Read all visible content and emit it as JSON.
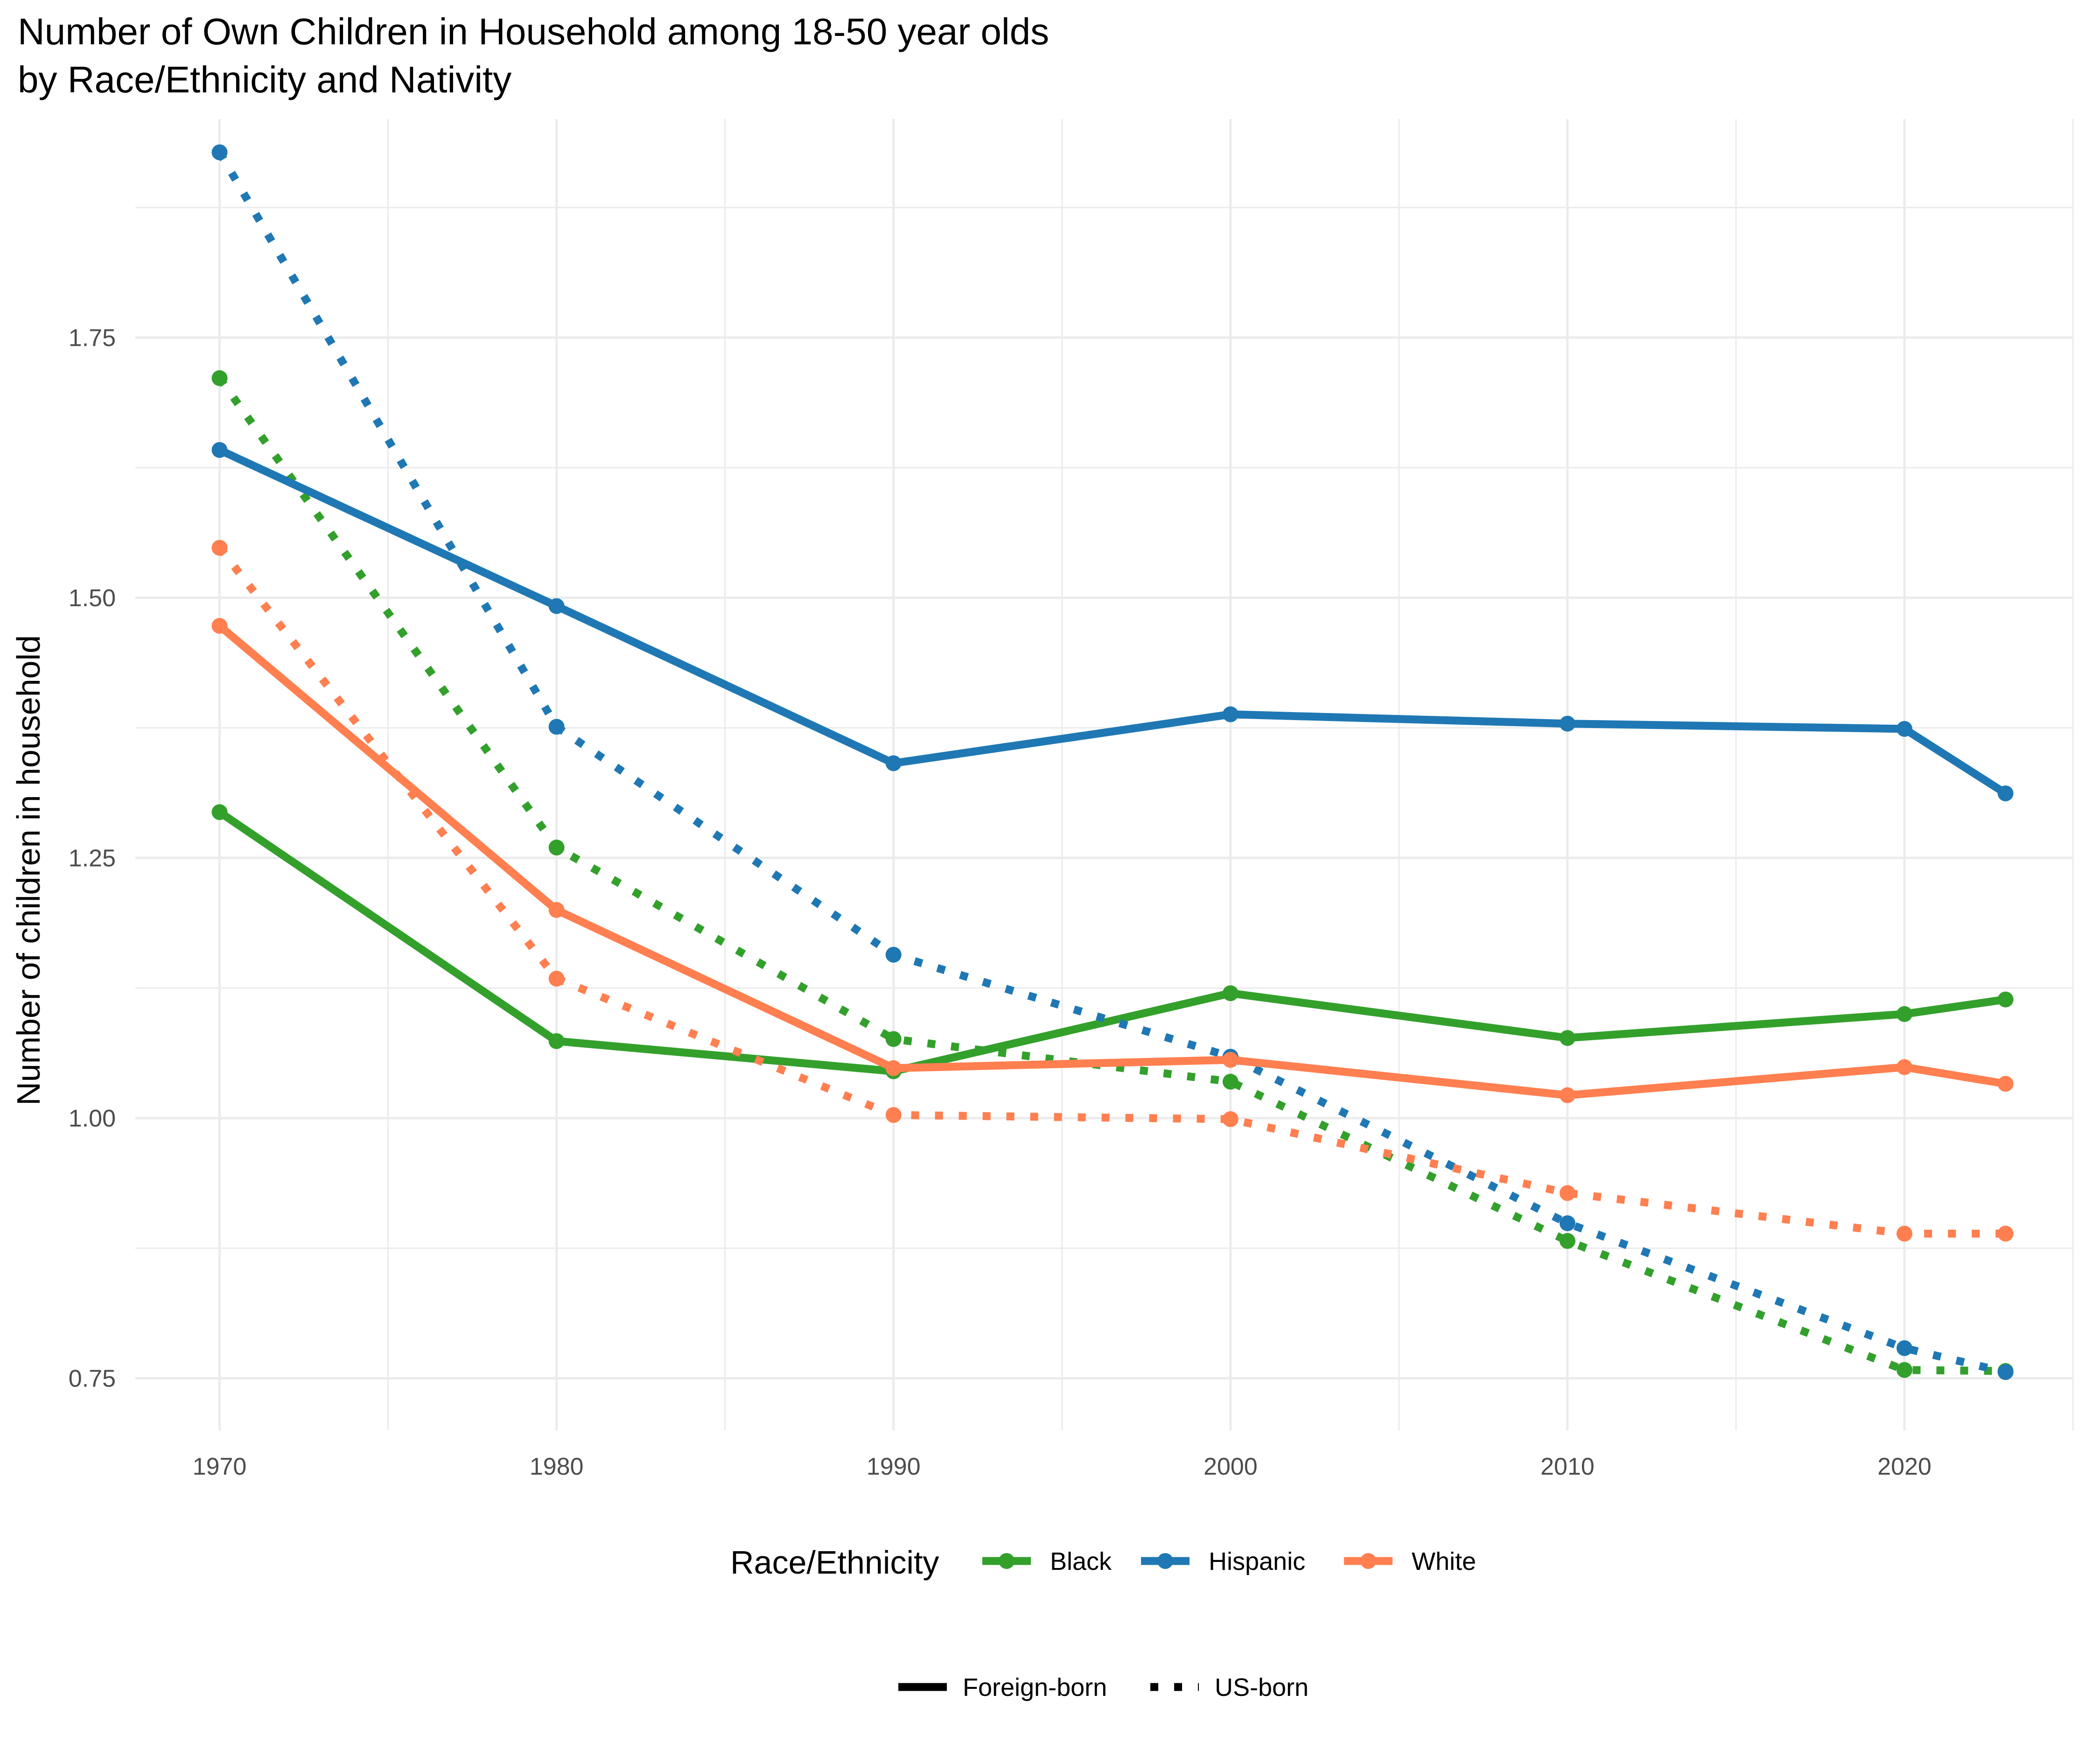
{
  "chart_data": {
    "type": "line",
    "title": [
      "Number of Own Children in Household among 18-50 year olds",
      "by Race/Ethnicity and Nativity"
    ],
    "xlabel": "",
    "ylabel": "Number of children in household",
    "x_ticks": [
      "1970",
      "1980",
      "1990",
      "2000",
      "2010",
      "2020"
    ],
    "y_ticks": [
      "0.75",
      "1.00",
      "1.25",
      "1.50",
      "1.75"
    ],
    "xlim": [
      1967.5,
      2025
    ],
    "ylim": [
      0.7,
      1.96
    ],
    "grid": true,
    "colors": {
      "Black": "#33a02c",
      "Hispanic": "#1f78b4",
      "White": "#ff7f50"
    },
    "legend": {
      "color_title": "Race/Ethnicity",
      "color_items": [
        "Black",
        "Hispanic",
        "White"
      ],
      "linetype_items": [
        "Foreign-born",
        "US-born"
      ],
      "placement": "bottom"
    },
    "x": [
      1970,
      1980,
      1990,
      2000,
      2010,
      2020,
      2023
    ],
    "series": [
      {
        "group": "Black",
        "nativity": "Foreign-born",
        "color": "#33a02c",
        "dash": "solid",
        "values": [
          1.294,
          1.074,
          1.045,
          1.12,
          1.077,
          1.1,
          1.114
        ]
      },
      {
        "group": "Black",
        "nativity": "US-born",
        "color": "#33a02c",
        "dash": "dotted",
        "values": [
          1.711,
          1.26,
          1.076,
          1.035,
          0.882,
          0.758,
          0.757
        ]
      },
      {
        "group": "Hispanic",
        "nativity": "Foreign-born",
        "color": "#1f78b4",
        "dash": "solid",
        "values": [
          1.642,
          1.492,
          1.341,
          1.388,
          1.379,
          1.374,
          1.312
        ]
      },
      {
        "group": "Hispanic",
        "nativity": "US-born",
        "color": "#1f78b4",
        "dash": "dotted",
        "values": [
          1.928,
          1.376,
          1.157,
          1.059,
          0.899,
          0.779,
          0.756
        ]
      },
      {
        "group": "White",
        "nativity": "Foreign-born",
        "color": "#ff7f50",
        "dash": "solid",
        "values": [
          1.473,
          1.2,
          1.048,
          1.056,
          1.022,
          1.049,
          1.033
        ]
      },
      {
        "group": "White",
        "nativity": "US-born",
        "color": "#ff7f50",
        "dash": "dotted",
        "values": [
          1.548,
          1.134,
          1.003,
          0.999,
          0.928,
          0.889,
          0.889
        ]
      }
    ]
  }
}
